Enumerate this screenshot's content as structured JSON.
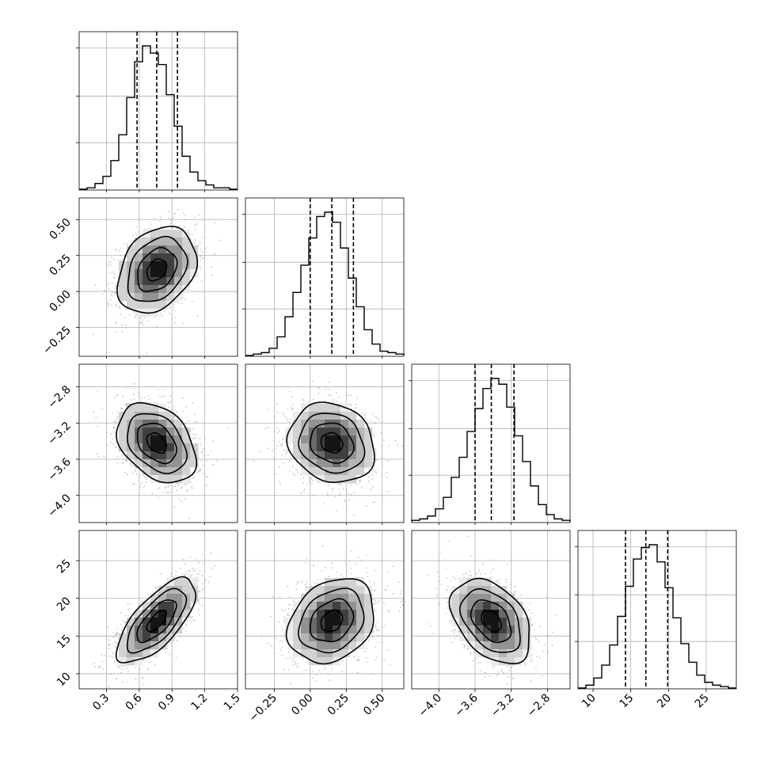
{
  "chart_data": {
    "type": "corner",
    "title": "",
    "parameters": [
      {
        "name": "",
        "range": [
          0.05,
          1.5
        ],
        "median": 0.76,
        "q16": 0.58,
        "q84": 0.95,
        "sigma": 0.18,
        "ticks": [
          0.3,
          0.6,
          0.9,
          1.2,
          1.5
        ],
        "tick_labels": [
          "0.3",
          "0.6",
          "0.9",
          "1.2",
          "1.5"
        ]
      },
      {
        "name": "",
        "range": [
          -0.45,
          0.65
        ],
        "median": 0.15,
        "q16": 0.0,
        "q84": 0.3,
        "sigma": 0.15,
        "ticks": [
          -0.25,
          0.0,
          0.25,
          0.5
        ],
        "tick_labels": [
          "−0.25",
          "0.00",
          "0.25",
          "0.50"
        ]
      },
      {
        "name": "",
        "range": [
          -4.3,
          -2.55
        ],
        "median": -3.42,
        "q16": -3.6,
        "q84": -3.17,
        "sigma": 0.22,
        "ticks": [
          -4.0,
          -3.6,
          -3.2,
          -2.8
        ],
        "tick_labels": [
          "−4.0",
          "−3.6",
          "−3.2",
          "−2.8"
        ]
      },
      {
        "name": "",
        "range": [
          8.0,
          29.0
        ],
        "median": 17.0,
        "q16": 14.3,
        "q84": 19.9,
        "sigma": 2.8,
        "ticks": [
          10,
          15,
          20,
          25
        ],
        "tick_labels": [
          "10",
          "15",
          "20",
          "25"
        ]
      }
    ],
    "histograms": [
      {
        "bins": [
          0.05,
          0.1225,
          0.195,
          0.2675,
          0.34,
          0.4125,
          0.485,
          0.5575,
          0.63,
          0.7025,
          0.775,
          0.8475,
          0.92,
          0.9925,
          1.065,
          1.1375,
          1.21,
          1.2825,
          1.355,
          1.4275,
          1.5
        ],
        "counts": [
          0,
          1,
          4,
          9,
          20,
          38,
          64,
          89,
          100,
          95,
          87,
          66,
          44,
          23,
          12,
          6,
          3,
          1,
          1,
          0
        ]
      },
      {
        "bins": [
          -0.45,
          -0.395,
          -0.34,
          -0.285,
          -0.23,
          -0.175,
          -0.12,
          -0.065,
          -0.01,
          0.045,
          0.1,
          0.155,
          0.21,
          0.265,
          0.32,
          0.375,
          0.43,
          0.485,
          0.54,
          0.595,
          0.65
        ],
        "counts": [
          0,
          1,
          2,
          5,
          13,
          27,
          44,
          63,
          82,
          97,
          100,
          93,
          75,
          54,
          34,
          18,
          8,
          3,
          2,
          1
        ]
      },
      {
        "bins": [
          -4.3,
          -4.2125,
          -4.125,
          -4.0375,
          -3.95,
          -3.8625,
          -3.775,
          -3.6875,
          -3.6,
          -3.5125,
          -3.425,
          -3.3375,
          -3.25,
          -3.1625,
          -3.075,
          -2.9875,
          -2.9,
          -2.8125,
          -2.725,
          -2.6375,
          -2.55
        ],
        "counts": [
          1,
          2,
          4,
          9,
          17,
          31,
          45,
          63,
          79,
          93,
          100,
          96,
          80,
          60,
          42,
          25,
          12,
          5,
          2,
          1
        ]
      },
      {
        "bins": [
          8.0,
          9.05,
          10.1,
          11.15,
          12.2,
          13.25,
          14.3,
          15.35,
          16.4,
          17.45,
          18.5,
          19.55,
          20.6,
          21.65,
          22.7,
          23.75,
          24.8,
          25.85,
          26.9,
          27.95,
          29.0
        ],
        "counts": [
          0,
          2,
          7,
          16,
          30,
          50,
          71,
          90,
          98,
          100,
          88,
          70,
          49,
          31,
          18,
          9,
          4,
          2,
          1,
          0
        ]
      }
    ],
    "correlations": [
      {
        "pair": [
          0,
          1
        ],
        "rho": 0.3
      },
      {
        "pair": [
          0,
          2
        ],
        "rho": -0.35
      },
      {
        "pair": [
          1,
          2
        ],
        "rho": -0.15
      },
      {
        "pair": [
          0,
          3
        ],
        "rho": 0.7
      },
      {
        "pair": [
          1,
          3
        ],
        "rho": 0.25
      },
      {
        "pair": [
          2,
          3
        ],
        "rho": -0.4
      }
    ],
    "contour_levels_sigma": [
      0.5,
      1.0,
      1.5,
      2.0
    ],
    "grid": true,
    "quantile_lines": "dashed"
  }
}
